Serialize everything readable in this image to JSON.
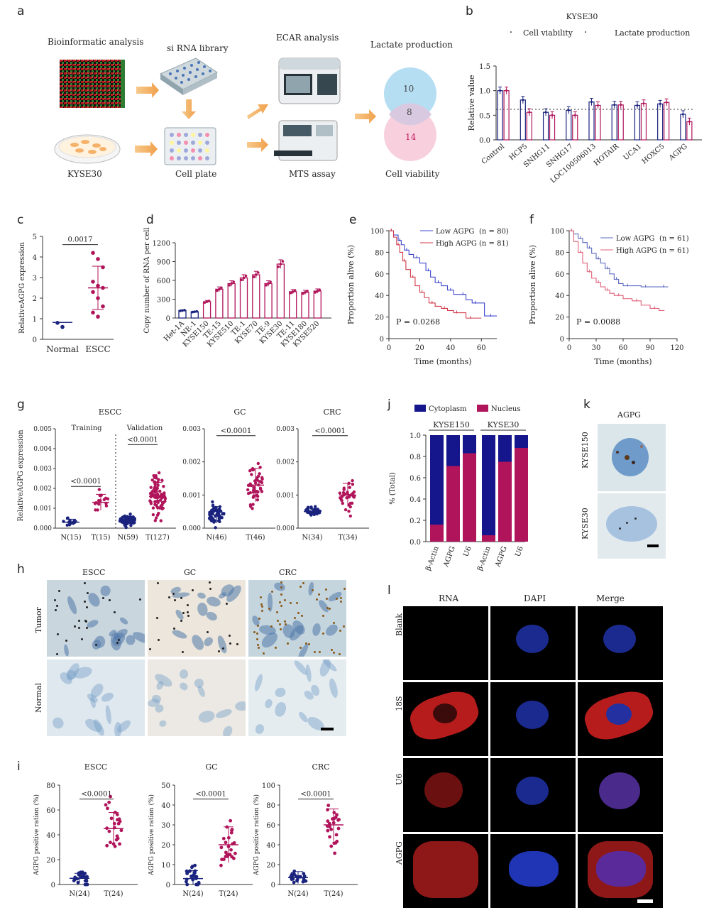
{
  "panels": {
    "a": {
      "label": "a",
      "titles": {
        "bioinfo": "Bioinformatic analysis",
        "sirna": "si RNA library",
        "ecar": "ECAR analysis",
        "lactate": "Lactate production",
        "kyse": "KYSE30",
        "plate": "Cell plate",
        "mts": "MTS assay",
        "viability": "Cell viability"
      },
      "venn": {
        "top": "10",
        "overlap": "8",
        "bottom": "14"
      }
    },
    "b": {
      "label": "b"
    },
    "c": {
      "label": "c"
    },
    "d": {
      "label": "d"
    },
    "e": {
      "label": "e"
    },
    "f": {
      "label": "f"
    },
    "g": {
      "label": "g"
    },
    "h": {
      "label": "h",
      "cols": [
        "ESCC",
        "GC",
        "CRC"
      ],
      "rows": [
        "Tumor",
        "Normal"
      ]
    },
    "i": {
      "label": "i"
    },
    "j": {
      "label": "j"
    },
    "k": {
      "label": "k",
      "title": "AGPG",
      "rows": [
        "KYSE150",
        "KYSE30"
      ]
    },
    "l": {
      "label": "l",
      "cols": [
        "RNA",
        "DAPI",
        "Merge"
      ],
      "rows": [
        "Blank",
        "18S",
        "U6",
        "AGPG"
      ]
    }
  },
  "chart_data": [
    {
      "id": "b",
      "type": "bar",
      "title": "KYSE30",
      "ylabel": "Relative value",
      "ylim": [
        0,
        1.5
      ],
      "yticks": [
        "0.0",
        "0.5",
        "1.0",
        "1.5"
      ],
      "categories": [
        "Control",
        "HCP5",
        "SNHG11",
        "SNHG17",
        "LOC100506013",
        "HOTAIR",
        "UCA1",
        "HOXC5",
        "AGPG"
      ],
      "series": [
        {
          "name": "Cell viability",
          "color": "#1a237e",
          "values": [
            1.0,
            0.81,
            0.56,
            0.6,
            0.77,
            0.71,
            0.7,
            0.73,
            0.52
          ]
        },
        {
          "name": "Lactate production",
          "color": "#b0145a",
          "values": [
            1.0,
            0.56,
            0.5,
            0.5,
            0.7,
            0.71,
            0.74,
            0.76,
            0.37
          ]
        }
      ],
      "threshold": 0.62
    },
    {
      "id": "c",
      "type": "scatter",
      "ylabel": "RelativeAGPG  expression",
      "ylim": [
        0,
        5
      ],
      "yticks": [
        "0",
        "1",
        "2",
        "3",
        "4",
        "5"
      ],
      "categories": [
        "Normal",
        "ESCC"
      ],
      "pvalue": "0.0017",
      "series": [
        {
          "name": "Normal",
          "color": "#1a237e",
          "values": [
            0.8,
            0.6
          ],
          "mean": 0.82
        },
        {
          "name": "ESCC",
          "color": "#b0145a",
          "values": [
            4.2,
            3.9,
            3.5,
            2.8,
            2.6,
            2.5,
            2.3,
            2.0,
            1.6,
            1.3,
            1.1
          ],
          "mean": 2.5,
          "sd": 1.05
        }
      ]
    },
    {
      "id": "d",
      "type": "bar",
      "ylabel": "Copy number of RNA per cell",
      "ylim": [
        0,
        1200
      ],
      "yticks": [
        "0",
        "300",
        "600",
        "900",
        "1200"
      ],
      "categories": [
        "Het-1A",
        "NE-1",
        "KYSE150",
        "TE-15",
        "KYSE510",
        "TE-1",
        "KYSE70",
        "TE-9",
        "KYSE30",
        "TE-11",
        "KYSE180",
        "KYSE520"
      ],
      "values": [
        120,
        100,
        260,
        460,
        550,
        640,
        690,
        550,
        860,
        420,
        410,
        430
      ]
    },
    {
      "id": "e",
      "type": "line",
      "ylabel": "Proportion alive (%)",
      "xlabel": "Time (months)",
      "xlim": [
        0,
        70
      ],
      "ylim": [
        0,
        100
      ],
      "xticks": [
        "0",
        "20",
        "40",
        "60"
      ],
      "yticks": [
        "0",
        "20",
        "40",
        "60",
        "80",
        "100"
      ],
      "pvalue": "P = 0.0268",
      "series": [
        {
          "name": "Low AGPG",
          "n": "(n = 80)",
          "color": "#3f48cc",
          "x": [
            0,
            3,
            6,
            8,
            10,
            13,
            16,
            20,
            24,
            27,
            30,
            34,
            38,
            42,
            46,
            50,
            54,
            58,
            62,
            70
          ],
          "y": [
            100,
            96,
            91,
            87,
            82,
            78,
            75,
            70,
            63,
            57,
            52,
            49,
            45,
            41,
            41,
            36,
            33,
            33,
            21,
            21
          ]
        },
        {
          "name": "High AGPG",
          "n": "(n = 81)",
          "color": "#d13a4a",
          "x": [
            0,
            3,
            5,
            7,
            9,
            11,
            14,
            17,
            20,
            23,
            26,
            30,
            34,
            38,
            42,
            46,
            50,
            56,
            60
          ],
          "y": [
            100,
            94,
            87,
            80,
            72,
            64,
            57,
            49,
            43,
            38,
            33,
            30,
            28,
            26,
            24,
            24,
            19,
            19,
            19
          ]
        }
      ]
    },
    {
      "id": "f",
      "type": "line",
      "ylabel": "Proportion alive (%)",
      "xlabel": "Time (months)",
      "xlim": [
        0,
        120
      ],
      "ylim": [
        0,
        100
      ],
      "xticks": [
        "0",
        "30",
        "60",
        "90",
        "120"
      ],
      "yticks": [
        "0",
        "20",
        "40",
        "60",
        "80",
        "100"
      ],
      "pvalue": "P = 0.0088",
      "series": [
        {
          "name": "Low AGPG",
          "n": "(n = 61)",
          "color": "#5c6bc0",
          "x": [
            0,
            5,
            10,
            15,
            20,
            25,
            30,
            35,
            40,
            45,
            50,
            55,
            60,
            70,
            80,
            90,
            100,
            110
          ],
          "y": [
            100,
            97,
            93,
            89,
            84,
            79,
            74,
            70,
            65,
            60,
            55,
            51,
            49,
            49,
            48,
            48,
            48,
            48
          ]
        },
        {
          "name": "High AGPG",
          "n": "(n = 61)",
          "color": "#e0607a",
          "x": [
            0,
            5,
            10,
            15,
            20,
            25,
            30,
            35,
            40,
            45,
            50,
            60,
            70,
            80,
            90,
            100,
            106
          ],
          "y": [
            100,
            90,
            80,
            70,
            62,
            56,
            52,
            48,
            45,
            42,
            40,
            37,
            35,
            31,
            28,
            26,
            26
          ]
        }
      ]
    },
    {
      "id": "g",
      "type": "scatter",
      "ylabel": "RelativeAGPG  expression",
      "groups": [
        {
          "title": "ESCC",
          "subtitles": [
            "Training",
            "Validation"
          ],
          "ylim": [
            0,
            0.005
          ],
          "yticks": [
            "0.000",
            "0.001",
            "0.002",
            "0.003",
            "0.004",
            "0.005"
          ],
          "categories": [
            "N(15)",
            "T(15)",
            "N(59)",
            "T(127)"
          ],
          "pvalues": [
            "<0.0001",
            "<0.0001"
          ],
          "means": [
            0.0003,
            0.0013,
            0.0004,
            0.0016
          ],
          "sds": [
            0.00015,
            0.0004,
            0.0002,
            0.0007
          ],
          "n": [
            15,
            15,
            59,
            127
          ]
        },
        {
          "title": "GC",
          "ylim": [
            0,
            0.003
          ],
          "yticks": [
            "0.000",
            "0.001",
            "0.002",
            "0.003"
          ],
          "categories": [
            "N(46)",
            "T(46)"
          ],
          "pvalues": [
            "<0.0001"
          ],
          "means": [
            0.0004,
            0.0013
          ],
          "sds": [
            0.00025,
            0.0005
          ],
          "n": [
            46,
            46
          ]
        },
        {
          "title": "CRC",
          "ylim": [
            0,
            0.003
          ],
          "yticks": [
            "0.000",
            "0.001",
            "0.002",
            "0.003"
          ],
          "categories": [
            "N(34)",
            "T(34)"
          ],
          "pvalues": [
            "<0.0001"
          ],
          "means": [
            0.0005,
            0.001
          ],
          "sds": [
            0.0001,
            0.00035
          ],
          "n": [
            34,
            34
          ]
        }
      ],
      "colors": {
        "normal": "#1a237e",
        "tumor": "#b0145a"
      }
    },
    {
      "id": "i",
      "type": "scatter",
      "ylabel": "AGPG  positive  ration (%)",
      "groups": [
        {
          "title": "ESCC",
          "ylim": [
            0,
            80
          ],
          "yticks": [
            "0",
            "20",
            "40",
            "60",
            "80"
          ],
          "categories": [
            "N(24)",
            "T(24)"
          ],
          "pvalue": "<0.0001",
          "means": [
            5,
            45
          ],
          "sds": [
            4,
            13
          ]
        },
        {
          "title": "GC",
          "ylim": [
            0,
            50
          ],
          "yticks": [
            "0",
            "10",
            "20",
            "30",
            "40",
            "50"
          ],
          "categories": [
            "N(24)",
            "T(24)"
          ],
          "pvalue": "<0.0001",
          "means": [
            3,
            20
          ],
          "sds": [
            4,
            9
          ]
        },
        {
          "title": "CRC",
          "ylim": [
            0,
            100
          ],
          "yticks": [
            "0",
            "20",
            "40",
            "60",
            "80",
            "100"
          ],
          "categories": [
            "N(24)",
            "T(24)"
          ],
          "pvalue": "<0.0001",
          "means": [
            7,
            60
          ],
          "sds": [
            6,
            16
          ]
        }
      ],
      "colors": {
        "normal": "#1a237e",
        "tumor": "#b0145a"
      }
    },
    {
      "id": "j",
      "type": "bar",
      "ylabel": "% (Total)",
      "ylim": [
        0,
        1.0
      ],
      "yticks": [
        "0.0",
        "0.2",
        "0.4",
        "0.6",
        "0.8",
        "1.0"
      ],
      "groups": [
        "KYSE150",
        "KYSE30"
      ],
      "categories": [
        "β-Actin",
        "AGPG",
        "U6",
        "β-Actin",
        "AGPG",
        "U6"
      ],
      "series": [
        {
          "name": "Nucleus",
          "color": "#b0145a",
          "values": [
            0.16,
            0.71,
            0.83,
            0.06,
            0.75,
            0.88
          ]
        },
        {
          "name": "Cytoplasm",
          "color": "#16168c",
          "values": [
            0.84,
            0.29,
            0.17,
            0.94,
            0.25,
            0.12
          ]
        }
      ]
    }
  ]
}
